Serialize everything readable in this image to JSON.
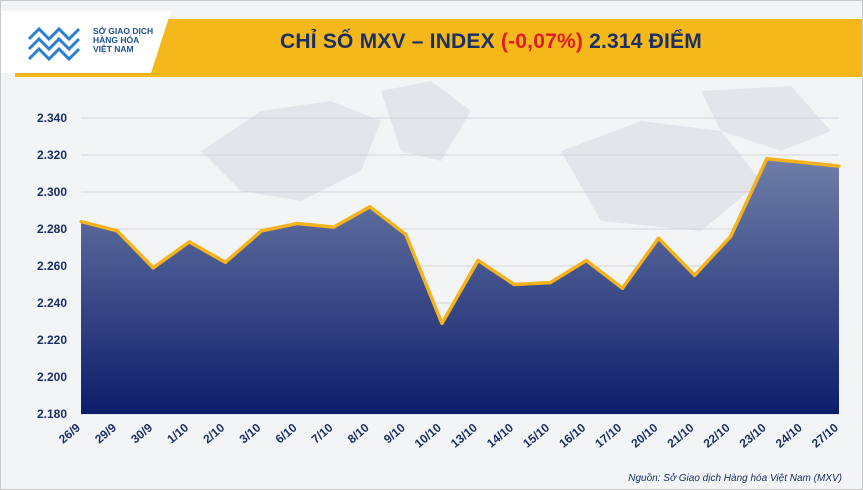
{
  "header": {
    "logo_lines": [
      "SỞ GIAO DỊCH",
      "HÀNG HÓA",
      "VIỆT NAM"
    ],
    "title_prefix": "CHỈ SỐ MXV – INDEX",
    "title_change": "(-0,07%)",
    "title_value": "2.314 ĐIỂM"
  },
  "colors": {
    "banner": "#f4b81a",
    "line": "#f5b21b",
    "area_top": "#6f7fa8",
    "area_bottom": "#0d1d6b",
    "title_text": "#1b2f63",
    "negative": "#e21b23"
  },
  "source": "Nguồn: Sở Giao dịch Hàng hóa Việt Nam (MXV)",
  "chart_data": {
    "type": "area",
    "categories": [
      "26/9",
      "29/9",
      "30/9",
      "1/10",
      "2/10",
      "3/10",
      "6/10",
      "7/10",
      "8/10",
      "9/10",
      "10/10",
      "13/10",
      "14/10",
      "15/10",
      "16/10",
      "17/10",
      "20/10",
      "21/10",
      "22/10",
      "23/10",
      "24/10",
      "27/10"
    ],
    "values": [
      2284,
      2279,
      2259,
      2273,
      2262,
      2279,
      2283,
      2281,
      2292,
      2277,
      2229,
      2263,
      2250,
      2251,
      2263,
      2248,
      2275,
      2255,
      2276,
      2318,
      2316,
      2314
    ],
    "ylim": [
      2180,
      2340
    ],
    "yticks": [
      2180,
      2200,
      2220,
      2240,
      2260,
      2280,
      2300,
      2320,
      2340
    ],
    "ytick_labels": [
      "2.180",
      "2.200",
      "2.220",
      "2.240",
      "2.260",
      "2.280",
      "2.300",
      "2.320",
      "2.340"
    ],
    "grid": true,
    "legend": "none"
  }
}
